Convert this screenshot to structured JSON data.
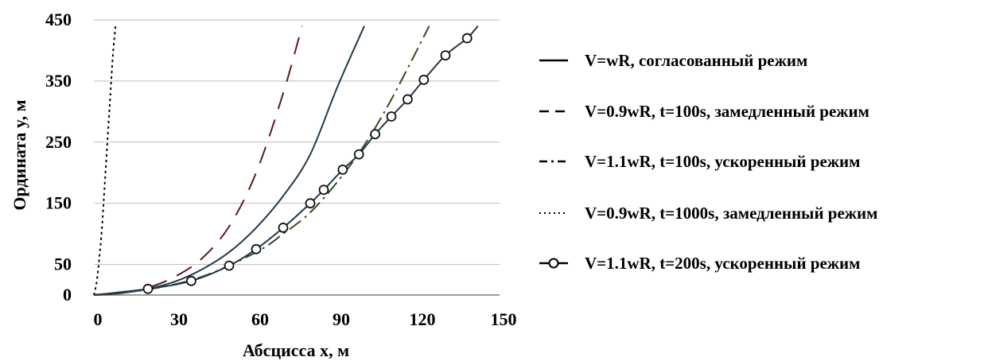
{
  "chart_data": {
    "type": "line",
    "title": "",
    "xlabel": "Абсцисса x, м",
    "ylabel": "Ордината y, м",
    "xlim": [
      0,
      150
    ],
    "ylim": [
      0,
      450
    ],
    "x_ticks": [
      "0",
      "30",
      "60",
      "90",
      "120",
      "150"
    ],
    "y_ticks": [
      "0",
      "50",
      "150",
      "250",
      "350",
      "450"
    ],
    "grid": "horizontal",
    "legend_position": "right",
    "series": [
      {
        "name": "V=wR, согласованный режим",
        "style": "solid",
        "color": "#1f3a4d",
        "x": [
          0,
          10,
          20,
          30,
          40,
          50,
          60,
          70,
          80,
          90,
          100
        ],
        "y": [
          0,
          3,
          10,
          22,
          42,
          70,
          110,
          162,
          230,
          340,
          440
        ]
      },
      {
        "name": "V=0.9wR, t=100s, замедленный режим",
        "style": "dashed",
        "color": "#5a1a1a",
        "x": [
          0,
          10,
          20,
          30,
          40,
          50,
          60,
          70,
          77
        ],
        "y": [
          0,
          3,
          12,
          30,
          60,
          112,
          200,
          330,
          440
        ]
      },
      {
        "name": "V=1.1wR, t=100s, ускоренный режим",
        "style": "dashdot",
        "color": "#3a4a1a",
        "x": [
          0,
          20,
          40,
          60,
          70,
          80,
          90,
          100,
          110,
          124
        ],
        "y": [
          0,
          9,
          30,
          70,
          100,
          135,
          185,
          245,
          320,
          440
        ]
      },
      {
        "name": "V=0.9wR, t=1000s, замедленный режим",
        "style": "dotted",
        "color": "#000000",
        "x": [
          0,
          1,
          2,
          3,
          4,
          5,
          6,
          7,
          8
        ],
        "y": [
          0,
          20,
          60,
          110,
          180,
          250,
          320,
          390,
          440
        ]
      },
      {
        "name": "V=1.1wR, t=200s, ускоренный режим",
        "style": "solid-circles",
        "color": "#1f3a4d",
        "x": [
          0,
          20,
          36,
          50,
          60,
          70,
          80,
          85,
          92,
          98,
          104,
          110,
          116,
          122,
          130,
          138,
          142
        ],
        "y": [
          0,
          10,
          23,
          48,
          75,
          110,
          150,
          172,
          205,
          230,
          263,
          292,
          320,
          352,
          392,
          420,
          440
        ],
        "markers_x": [
          20,
          36,
          50,
          60,
          70,
          80,
          85,
          92,
          98,
          104,
          110,
          116,
          122,
          130,
          138
        ],
        "markers_y": [
          10,
          23,
          48,
          75,
          110,
          150,
          172,
          205,
          230,
          263,
          292,
          320,
          352,
          392,
          420
        ]
      }
    ]
  }
}
